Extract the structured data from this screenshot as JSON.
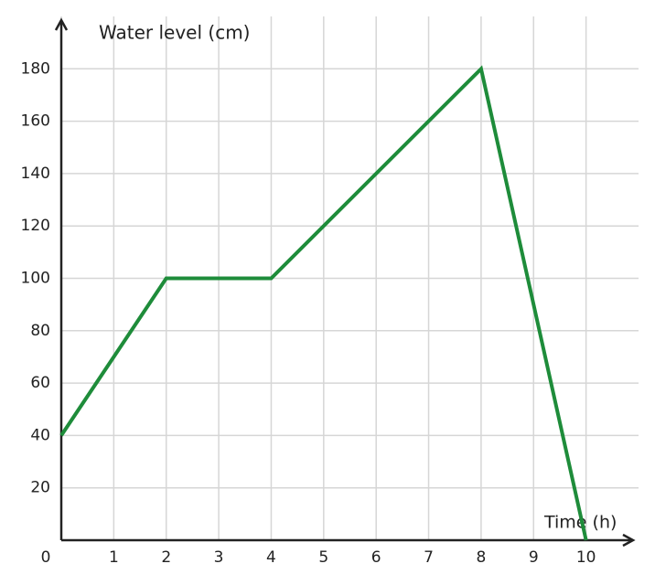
{
  "chart_data": {
    "type": "line",
    "y_label": "Water level (cm)",
    "x_label": "Time (h)",
    "x": [
      0,
      2,
      4,
      8,
      10
    ],
    "series": [
      {
        "color": "#1e8c3a",
        "values": [
          40,
          100,
          100,
          180,
          0
        ]
      }
    ],
    "xlim": [
      0,
      11
    ],
    "ylim": [
      0,
      200
    ],
    "xticks": [
      0,
      1,
      2,
      3,
      4,
      5,
      6,
      7,
      8,
      9,
      10
    ],
    "yticks": [
      20,
      40,
      60,
      80,
      100,
      120,
      140,
      160,
      180
    ],
    "grid": true
  }
}
